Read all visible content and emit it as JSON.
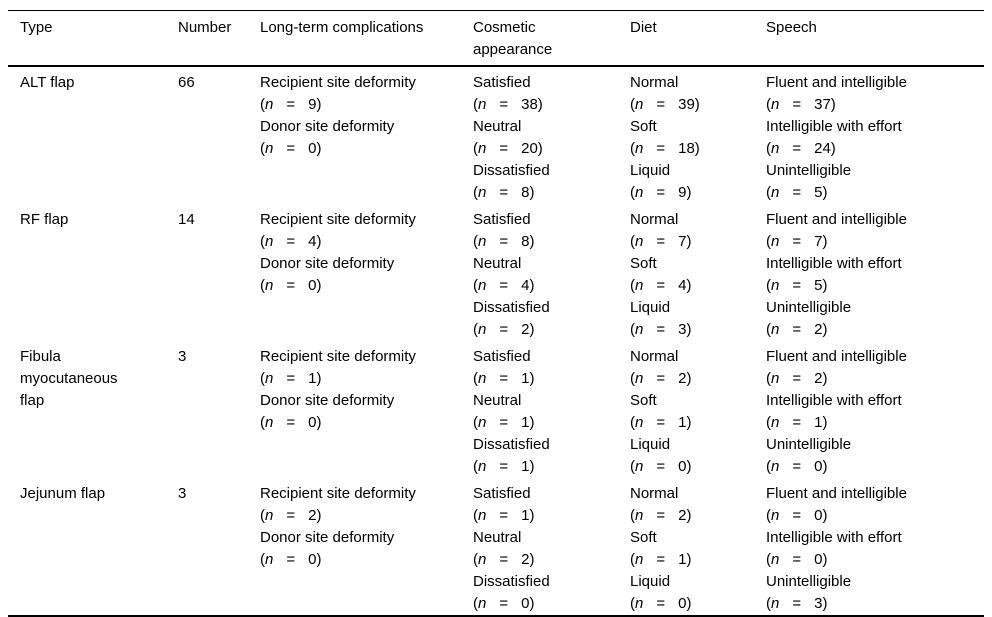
{
  "colors": {
    "background": "#ffffff",
    "text": "#000000",
    "rule": "#000000"
  },
  "table": {
    "columns": [
      "Type",
      "Number",
      "Long-term complications",
      "Cosmetic appearance",
      "Diet",
      "Speech"
    ],
    "n_symbol": "n",
    "rows": [
      {
        "type": "ALT flap",
        "number": "66",
        "complications": [
          {
            "label": "Recipient site deformity",
            "n": "9"
          },
          {
            "label": "Donor site deformity",
            "n": "0"
          }
        ],
        "cosmetic": [
          {
            "label": "Satisfied",
            "n": "38"
          },
          {
            "label": "Neutral",
            "n": "20"
          },
          {
            "label": "Dissatisfied",
            "n": "8"
          }
        ],
        "diet": [
          {
            "label": "Normal",
            "n": "39"
          },
          {
            "label": "Soft",
            "n": "18"
          },
          {
            "label": "Liquid",
            "n": "9"
          }
        ],
        "speech": [
          {
            "label": "Fluent and intelligible",
            "n": "37"
          },
          {
            "label": "Intelligible with effort",
            "n": "24"
          },
          {
            "label": "Unintelligible",
            "n": "5"
          }
        ]
      },
      {
        "type": "RF flap",
        "number": "14",
        "complications": [
          {
            "label": "Recipient site deformity",
            "n": "4"
          },
          {
            "label": "Donor site deformity",
            "n": "0"
          }
        ],
        "cosmetic": [
          {
            "label": "Satisfied",
            "n": "8"
          },
          {
            "label": "Neutral",
            "n": "4"
          },
          {
            "label": "Dissatisfied",
            "n": "2"
          }
        ],
        "diet": [
          {
            "label": "Normal",
            "n": "7"
          },
          {
            "label": "Soft",
            "n": "4"
          },
          {
            "label": "Liquid",
            "n": "3"
          }
        ],
        "speech": [
          {
            "label": "Fluent and intelligible",
            "n": "7"
          },
          {
            "label": "Intelligible with effort",
            "n": "5"
          },
          {
            "label": "Unintelligible",
            "n": "2"
          }
        ]
      },
      {
        "type": "Fibula myocutaneous flap",
        "number": "3",
        "complications": [
          {
            "label": "Recipient site deformity",
            "n": "1"
          },
          {
            "label": "Donor site deformity",
            "n": "0"
          }
        ],
        "cosmetic": [
          {
            "label": "Satisfied",
            "n": "1"
          },
          {
            "label": "Neutral",
            "n": "1"
          },
          {
            "label": "Dissatisfied",
            "n": "1"
          }
        ],
        "diet": [
          {
            "label": "Normal",
            "n": "2"
          },
          {
            "label": "Soft",
            "n": "1"
          },
          {
            "label": "Liquid",
            "n": "0"
          }
        ],
        "speech": [
          {
            "label": "Fluent and intelligible",
            "n": "2"
          },
          {
            "label": "Intelligible with effort",
            "n": "1"
          },
          {
            "label": "Unintelligible",
            "n": "0"
          }
        ]
      },
      {
        "type": "Jejunum flap",
        "number": "3",
        "complications": [
          {
            "label": "Recipient site deformity",
            "n": "2"
          },
          {
            "label": "Donor site deformity",
            "n": "0"
          }
        ],
        "cosmetic": [
          {
            "label": "Satisfied",
            "n": "1"
          },
          {
            "label": "Neutral",
            "n": "2"
          },
          {
            "label": "Dissatisfied",
            "n": "0"
          }
        ],
        "diet": [
          {
            "label": "Normal",
            "n": "2"
          },
          {
            "label": "Soft",
            "n": "1"
          },
          {
            "label": "Liquid",
            "n": "0"
          }
        ],
        "speech": [
          {
            "label": "Fluent and intelligible",
            "n": "0"
          },
          {
            "label": "Intelligible with effort",
            "n": "0"
          },
          {
            "label": "Unintelligible",
            "n": "3"
          }
        ]
      }
    ]
  }
}
